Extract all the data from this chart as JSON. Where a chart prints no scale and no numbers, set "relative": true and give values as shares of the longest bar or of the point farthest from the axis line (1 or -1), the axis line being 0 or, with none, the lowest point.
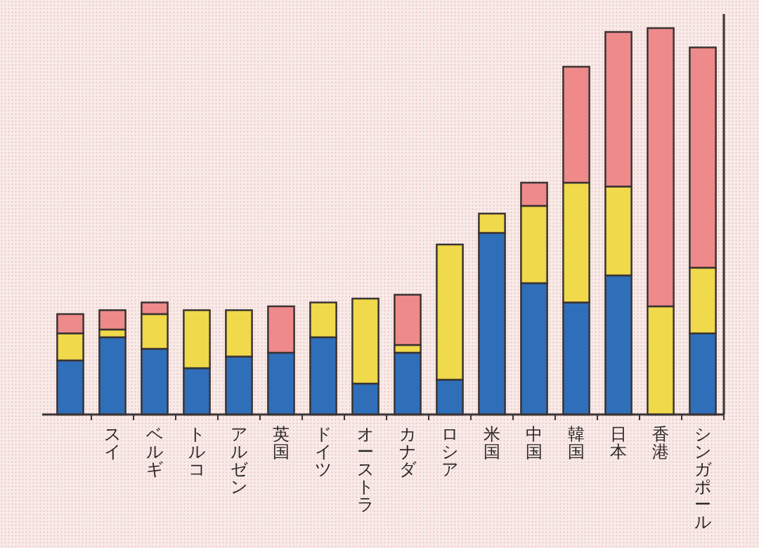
{
  "chart_data": {
    "type": "bar",
    "stacked": true,
    "relative": true,
    "categories": [
      null,
      "スイ",
      "ベルギ",
      "トルコ",
      "アルゼン",
      "英国",
      "ドイツ",
      "オーストラ",
      "カナダ",
      "ロシア",
      "米国",
      "中国",
      "韓国",
      "日本",
      "香港",
      "シンガポール"
    ],
    "series": [
      {
        "color": "#2f6fba",
        "values": [
          0.14,
          0.2,
          0.17,
          0.12,
          0.15,
          0.16,
          0.2,
          0.08,
          0.16,
          0.09,
          0.47,
          0.34,
          0.29,
          0.36,
          0,
          0.21
        ]
      },
      {
        "color": "#f0d94a",
        "values": [
          0.07,
          0.02,
          0.09,
          0.15,
          0.12,
          0,
          0.09,
          0.22,
          0.02,
          0.35,
          0.05,
          0.2,
          0.31,
          0.23,
          0.28,
          0.17
        ]
      },
      {
        "color": "#ef8a8a",
        "values": [
          0.05,
          0.05,
          0.03,
          0,
          0,
          0.12,
          0,
          0,
          0.13,
          0,
          0,
          0.06,
          0.3,
          0.4,
          0.72,
          0.57
        ]
      }
    ]
  }
}
